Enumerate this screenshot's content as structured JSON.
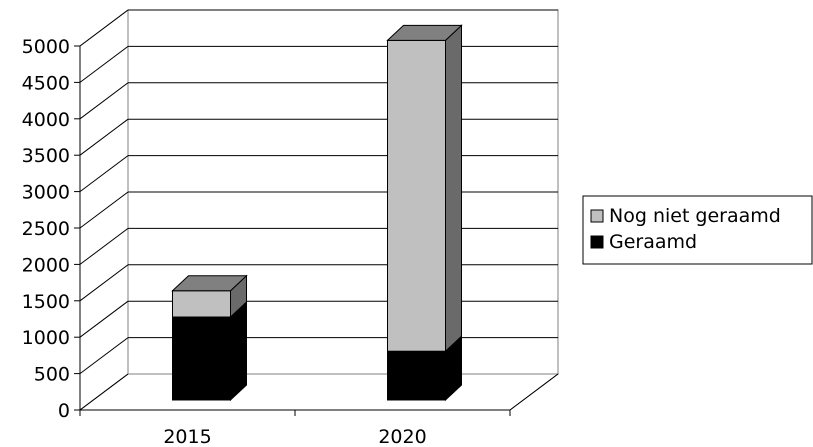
{
  "chart_data": {
    "type": "bar",
    "stacked": true,
    "three_d": true,
    "categories": [
      "2015",
      "2020"
    ],
    "series": [
      {
        "name": "Geraamd",
        "values": [
          1140,
          670
        ]
      },
      {
        "name": "Nog niet geraamd",
        "values": [
          360,
          4270
        ]
      }
    ],
    "ylim": [
      0,
      5000
    ],
    "yticks": [
      0,
      500,
      1000,
      1500,
      2000,
      2500,
      3000,
      3500,
      4000,
      4500,
      5000
    ],
    "grid": true,
    "legend": "right",
    "colors": {
      "Geraamd": "#000000",
      "Nog niet geraamd": "#c0c0c0",
      "Nog niet geraamd_top": "#808080",
      "Nog niet geraamd_side": "#6a6a6a",
      "Geraamd_side": "#000000"
    }
  }
}
